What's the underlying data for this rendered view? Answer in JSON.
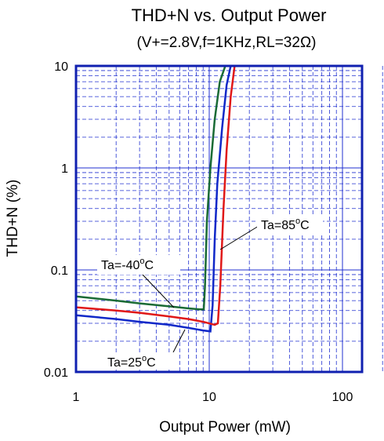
{
  "chart_data": {
    "type": "line",
    "title": "THD+N vs. Output Power",
    "subtitle": "(V+=2.8V,f=1KHz,RL=32Ω)",
    "xlabel": "Output Power (mW)",
    "ylabel": "THD+N (%)",
    "xscale": "log",
    "yscale": "log",
    "xlim": [
      1,
      200
    ],
    "ylim": [
      0.01,
      10
    ],
    "xticks": [
      "1",
      "10",
      "100"
    ],
    "yticks": [
      "10",
      "1",
      "0.1",
      "0.01"
    ],
    "grid": true,
    "series": [
      {
        "name": "Ta=-40°C",
        "color": "#1a6b35",
        "x": [
          1,
          2,
          3,
          5,
          7,
          8.5,
          9.1,
          9.3,
          9.6,
          10.2,
          11,
          12,
          13.2
        ],
        "y": [
          0.055,
          0.05,
          0.047,
          0.044,
          0.042,
          0.041,
          0.041,
          0.07,
          0.3,
          1.0,
          3.0,
          7.0,
          10
        ]
      },
      {
        "name": "Ta=25°C",
        "color": "#1028c8",
        "x": [
          1,
          2,
          3,
          5,
          7,
          9,
          10.2,
          10.6,
          11,
          11.5,
          12.5,
          13.5,
          14.5
        ],
        "y": [
          0.036,
          0.033,
          0.031,
          0.029,
          0.027,
          0.0255,
          0.025,
          0.045,
          0.2,
          0.7,
          2.5,
          6.5,
          10
        ]
      },
      {
        "name": "Ta=85°C",
        "color": "#e01818",
        "x": [
          1,
          2,
          3,
          5,
          7,
          9,
          11,
          11.6,
          12.1,
          12.8,
          13.5,
          14.5,
          15.5
        ],
        "y": [
          0.043,
          0.04,
          0.038,
          0.035,
          0.033,
          0.031,
          0.029,
          0.03,
          0.07,
          0.4,
          1.5,
          5.0,
          10
        ]
      }
    ],
    "annotations": [
      {
        "text": "Ta=85°C",
        "label": "Ta=85",
        "sup": "o",
        "unit": "C"
      },
      {
        "text": "Ta=-40°C",
        "label": "Ta=-40",
        "sup": "o",
        "unit": "C"
      },
      {
        "text": "Ta=25°C",
        "label": "Ta=25",
        "sup": "o",
        "unit": "C"
      }
    ]
  }
}
